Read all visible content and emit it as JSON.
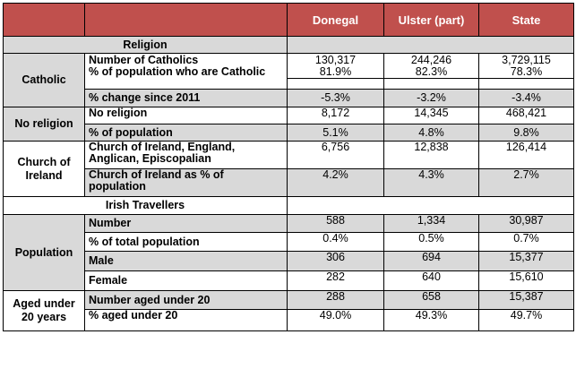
{
  "columns": [
    "",
    "",
    "Donegal",
    "Ulster (part)",
    "State"
  ],
  "sections": {
    "religion": "Religion",
    "travellers": "Irish Travellers"
  },
  "groups": {
    "catholic": "Catholic",
    "no_religion": "No religion",
    "church_of_ireland": "Church of Ireland",
    "population": "Population",
    "aged_under_20": "Aged under 20 years"
  },
  "rows": {
    "catholic_number": {
      "label": "Number of Catholics",
      "values": [
        "130,317",
        "244,246",
        "3,729,115"
      ]
    },
    "catholic_pct": {
      "label": "% of population who are Catholic",
      "values": [
        "81.9%",
        "82.3%",
        "78.3%"
      ]
    },
    "catholic_change": {
      "label": "% change since 2011",
      "values": [
        "-5.3%",
        "-3.2%",
        "-3.4%"
      ]
    },
    "norel_number": {
      "label": "No religion",
      "values": [
        "8,172",
        "14,345",
        "468,421"
      ]
    },
    "norel_pct": {
      "label": "% of population",
      "values": [
        "5.1%",
        "4.8%",
        "9.8%"
      ]
    },
    "coi_number": {
      "label": "Church of Ireland, England, Anglican, Episcopalian",
      "values": [
        "6,756",
        "12,838",
        "126,414"
      ]
    },
    "coi_pct": {
      "label": "Church of Ireland as % of population",
      "values": [
        "4.2%",
        "4.3%",
        "2.7%"
      ]
    },
    "trav_number": {
      "label": "Number",
      "values": [
        "588",
        "1,334",
        "30,987"
      ]
    },
    "trav_pct": {
      "label": "% of total population",
      "values": [
        "0.4%",
        "0.5%",
        "0.7%"
      ]
    },
    "trav_male": {
      "label": "Male",
      "values": [
        "306",
        "694",
        "15,377"
      ]
    },
    "trav_female": {
      "label": "Female",
      "values": [
        "282",
        "640",
        "15,610"
      ]
    },
    "u20_number": {
      "label": "Number aged under 20",
      "values": [
        "288",
        "658",
        "15,387"
      ]
    },
    "u20_pct": {
      "label": "% aged under 20",
      "values": [
        "49.0%",
        "49.3%",
        "49.7%"
      ]
    }
  },
  "colors": {
    "header_bg": "#c0504d",
    "header_text": "#ffffff",
    "shade": "#d9d9d9"
  }
}
